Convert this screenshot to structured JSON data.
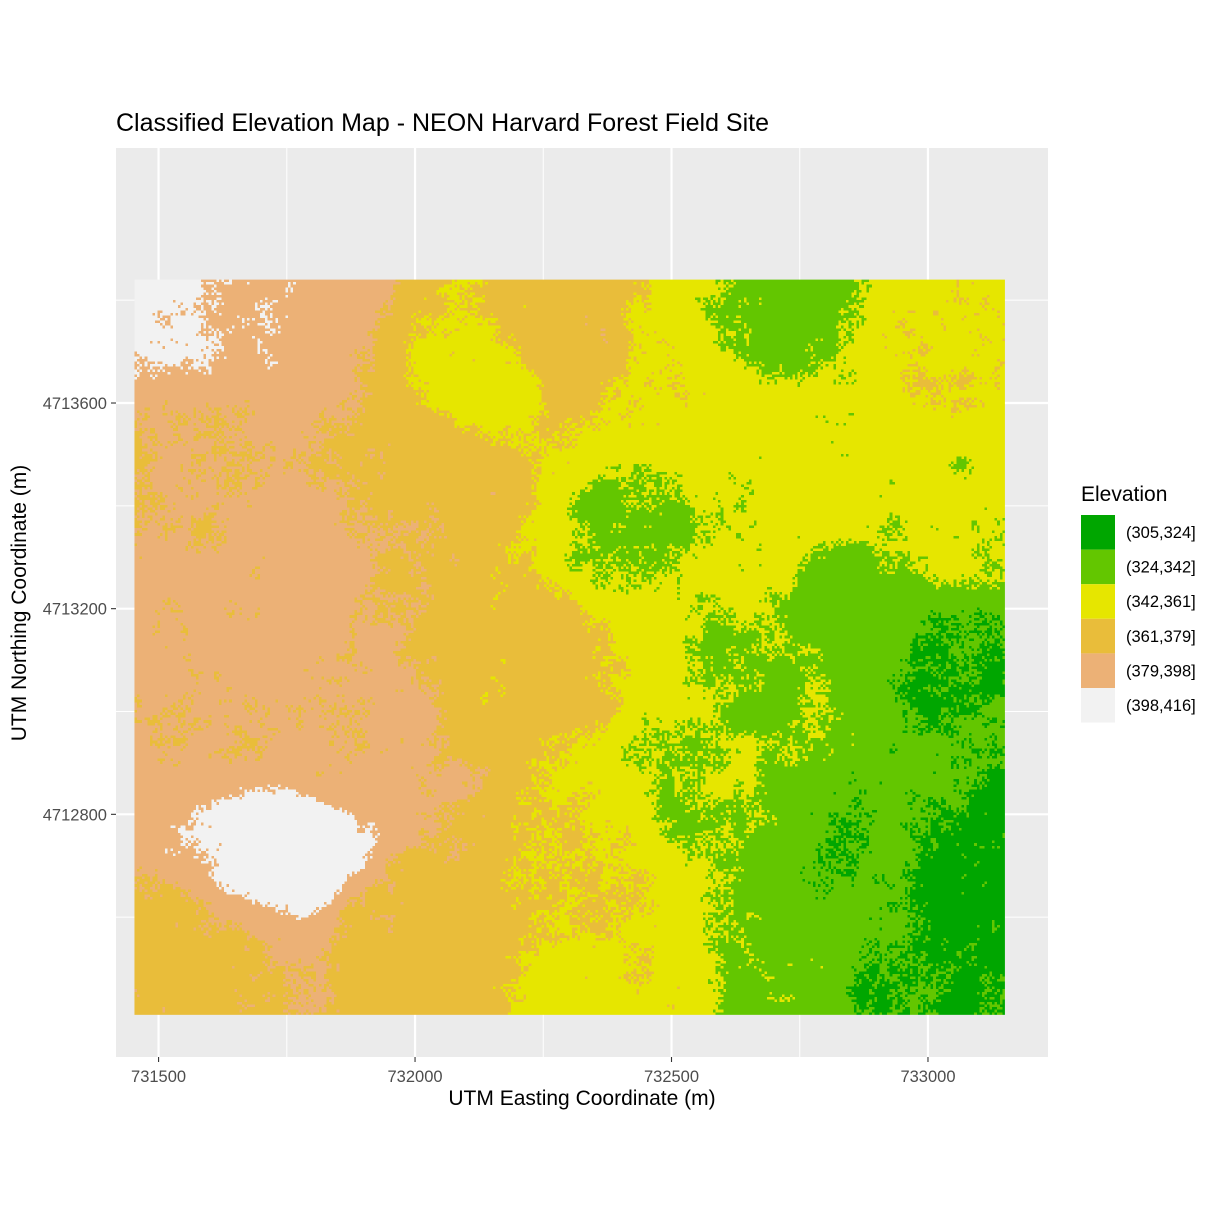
{
  "chart_data": {
    "type": "heatmap",
    "title": "Classified Elevation Map - NEON Harvard Forest Field Site",
    "xlabel": "UTM Easting Coordinate (m)",
    "ylabel": "UTM Northing Coordinate (m)",
    "xlim": [
      731417,
      733234
    ],
    "ylim": [
      4712328,
      4714096
    ],
    "raster_extent": {
      "x": [
        731453,
        733150
      ],
      "y": [
        4712410,
        4713840
      ]
    },
    "x_ticks": [
      731500,
      732000,
      732500,
      733000
    ],
    "x_tick_labels": [
      "731500",
      "732000",
      "732500",
      "733000"
    ],
    "y_ticks": [
      4712800,
      4713200,
      4713600
    ],
    "y_tick_labels": [
      "4712800",
      "4713200",
      "4713600"
    ],
    "grid": true,
    "panel_background": "#ebebeb",
    "legend_position": "right",
    "legend": {
      "title": "Elevation",
      "entries": [
        {
          "label": "(305,324]",
          "color": "#00a600"
        },
        {
          "label": "(324,342]",
          "color": "#63c600"
        },
        {
          "label": "(342,361]",
          "color": "#e6e600"
        },
        {
          "label": "(361,379]",
          "color": "#e9bd3a"
        },
        {
          "label": "(379,398]",
          "color": "#ecb176"
        },
        {
          "label": "(398,416]",
          "color": "#f2f2f2"
        }
      ]
    },
    "elevation_anchors": [
      {
        "x": 731520,
        "y": 4713800,
        "elev": 403
      },
      {
        "x": 731700,
        "y": 4713760,
        "elev": 392
      },
      {
        "x": 731600,
        "y": 4713500,
        "elev": 380
      },
      {
        "x": 731750,
        "y": 4713250,
        "elev": 386
      },
      {
        "x": 731660,
        "y": 4713000,
        "elev": 383
      },
      {
        "x": 731780,
        "y": 4712740,
        "elev": 412
      },
      {
        "x": 731900,
        "y": 4712900,
        "elev": 384
      },
      {
        "x": 732050,
        "y": 4713450,
        "elev": 375
      },
      {
        "x": 732000,
        "y": 4712600,
        "elev": 372
      },
      {
        "x": 732300,
        "y": 4713700,
        "elev": 372
      },
      {
        "x": 732150,
        "y": 4713640,
        "elev": 353
      },
      {
        "x": 732250,
        "y": 4713100,
        "elev": 368
      },
      {
        "x": 732350,
        "y": 4712700,
        "elev": 362
      },
      {
        "x": 732500,
        "y": 4713650,
        "elev": 355
      },
      {
        "x": 732600,
        "y": 4713300,
        "elev": 347
      },
      {
        "x": 732450,
        "y": 4713350,
        "elev": 338
      },
      {
        "x": 732720,
        "y": 4713760,
        "elev": 335
      },
      {
        "x": 732550,
        "y": 4712850,
        "elev": 341
      },
      {
        "x": 732700,
        "y": 4713020,
        "elev": 339
      },
      {
        "x": 732850,
        "y": 4713500,
        "elev": 350
      },
      {
        "x": 733050,
        "y": 4713700,
        "elev": 358
      },
      {
        "x": 733080,
        "y": 4713350,
        "elev": 345
      },
      {
        "x": 732900,
        "y": 4713150,
        "elev": 330
      },
      {
        "x": 733050,
        "y": 4713100,
        "elev": 322
      },
      {
        "x": 732900,
        "y": 4712750,
        "elev": 327
      },
      {
        "x": 733100,
        "y": 4712700,
        "elev": 318
      },
      {
        "x": 733000,
        "y": 4712450,
        "elev": 321
      },
      {
        "x": 732700,
        "y": 4712500,
        "elev": 336
      },
      {
        "x": 732400,
        "y": 4712480,
        "elev": 358
      },
      {
        "x": 731550,
        "y": 4712500,
        "elev": 372
      }
    ]
  }
}
